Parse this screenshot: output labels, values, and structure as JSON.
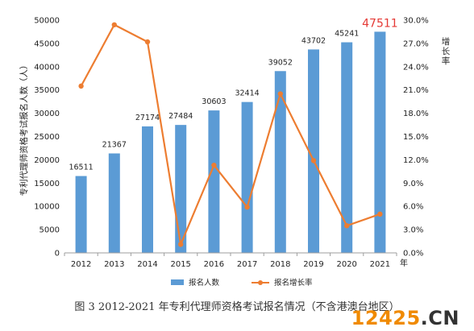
{
  "chart_data": {
    "type": "bar",
    "categories": [
      "2012",
      "2013",
      "2014",
      "2015",
      "2016",
      "2017",
      "2018",
      "2019",
      "2020",
      "2021"
    ],
    "series": [
      {
        "name": "报名人数",
        "type": "bar",
        "axis": "left",
        "values": [
          16511,
          21367,
          27174,
          27484,
          30603,
          32414,
          39052,
          43702,
          45241,
          47511
        ]
      },
      {
        "name": "报名增长率",
        "type": "line",
        "axis": "right",
        "values": [
          21.5,
          29.4,
          27.2,
          1.1,
          11.3,
          5.9,
          20.5,
          11.9,
          3.5,
          5.0
        ]
      }
    ],
    "ylabel": "专利代理师资格考试报名人数（人）",
    "ylabel_right": "增长率",
    "xunit": "年",
    "ylim": [
      0,
      50000
    ],
    "yticks": [
      "0",
      "5000",
      "10000",
      "15000",
      "20000",
      "25000",
      "30000",
      "35000",
      "40000",
      "45000",
      "50000"
    ],
    "ylim_right": [
      0,
      30
    ],
    "yticks_right": [
      "0.0%",
      "3.0%",
      "6.0%",
      "9.0%",
      "12.0%",
      "15.0%",
      "18.0%",
      "21.0%",
      "24.0%",
      "27.0%",
      "30.0%"
    ],
    "bar_labels": [
      "16511",
      "21367",
      "27174",
      "27484",
      "30603",
      "32414",
      "39052",
      "43702",
      "45241",
      "47511"
    ],
    "legend_position": "bottom",
    "grid": false,
    "colors": {
      "bar": "#5b9bd5",
      "line": "#ed7d31",
      "highlight_label": "#e53935"
    }
  },
  "caption": "图 3    2012-2021 年专利代理师资格考试报名情况（不含港澳台地区）",
  "watermark": {
    "prefix": "12425",
    "suffix": ".CN"
  }
}
